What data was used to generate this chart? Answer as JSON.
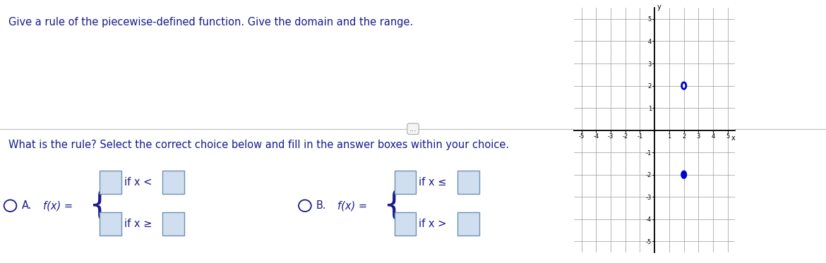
{
  "title_text": "Give a rule of the piecewise-defined function. Give the domain and the range.",
  "question_text": "What is the rule? Select the correct choice below and fill in the answer boxes within your choice.",
  "background_color": "#ffffff",
  "text_color": "#1a1a8c",
  "graph_bg": "#ffffff",
  "graph_grid_color": "#999999",
  "graph_line_color": "#0000cc",
  "graph_axis_color": "#000000",
  "upper_line_y": 2,
  "upper_line_x_start": 2,
  "lower_line_y": -2,
  "lower_line_x_start": 2,
  "xlim": [
    -5.5,
    5.5
  ],
  "ylim": [
    -5.5,
    5.5
  ],
  "dots_button": "...",
  "font_size_title": 10.5,
  "font_size_question": 10.5,
  "font_size_choice": 10.5
}
